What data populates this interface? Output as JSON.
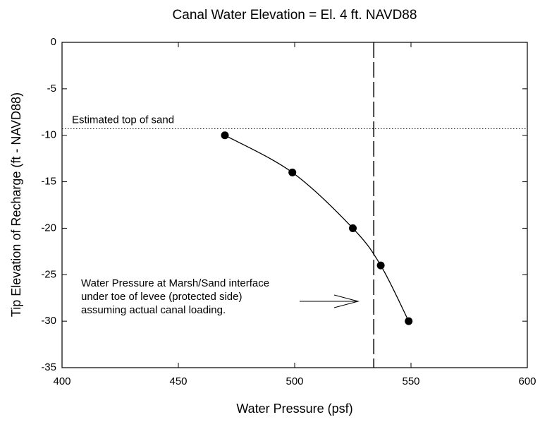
{
  "chart_data": {
    "type": "line",
    "title": "Canal Water Elevation = El. 4 ft. NAVD88",
    "x_label": "Water Pressure (psf)",
    "y_label": "Tip Elevation of Recharge (ft - NAVD88)",
    "x": [
      470,
      499,
      525,
      537,
      549
    ],
    "series": [
      {
        "color": "#000000",
        "values": [
          -10,
          -14,
          -20,
          -24,
          -30
        ]
      }
    ],
    "xlim": [
      400,
      600
    ],
    "xticks": [
      400,
      450,
      500,
      550,
      600
    ],
    "ylim": [
      -35,
      0
    ],
    "yticks": [
      0,
      -5,
      -10,
      -15,
      -20,
      -25,
      -30,
      -35
    ],
    "hline": {
      "value": -9.3,
      "label": "Estimated top of sand"
    },
    "vline": {
      "value": 534
    },
    "annotation": [
      "Water Pressure at Marsh/Sand interface",
      "under toe of levee (protected side)",
      "assuming actual canal loading."
    ]
  }
}
